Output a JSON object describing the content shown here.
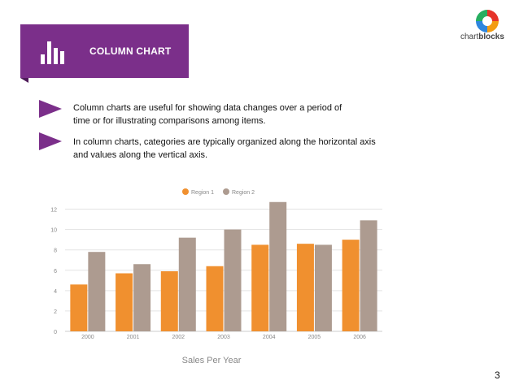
{
  "slide": {
    "title": "COLUMN CHART",
    "page_number": "3",
    "bullets": [
      {
        "line1": "Column charts are useful for showing data changes over a period of",
        "line2": "time or for illustrating comparisons among items."
      },
      {
        "line1": "In column charts, categories are typically organized along the horizontal axis",
        "line2": "and values along the vertical axis."
      }
    ],
    "brand": {
      "prefix": "chart",
      "bold": "blocks"
    }
  },
  "colors": {
    "purple": "#7b2f8a",
    "region1": "#f0902f",
    "region2": "#ad9b90"
  },
  "chart_data": {
    "type": "bar",
    "title": "",
    "xlabel": "Sales Per Year",
    "ylabel": "",
    "categories": [
      "2000",
      "2001",
      "2002",
      "2003",
      "2004",
      "2005",
      "2006"
    ],
    "series": [
      {
        "name": "Region 1",
        "values": [
          4.6,
          5.7,
          5.9,
          6.4,
          8.5,
          8.6,
          9.0
        ]
      },
      {
        "name": "Region 2",
        "values": [
          7.8,
          6.6,
          9.2,
          10.0,
          12.7,
          8.5,
          10.9
        ]
      }
    ],
    "yticks": [
      0,
      2,
      4,
      6,
      8,
      10,
      12
    ],
    "ylim": [
      0,
      13
    ],
    "grid": true,
    "legend": "top"
  }
}
